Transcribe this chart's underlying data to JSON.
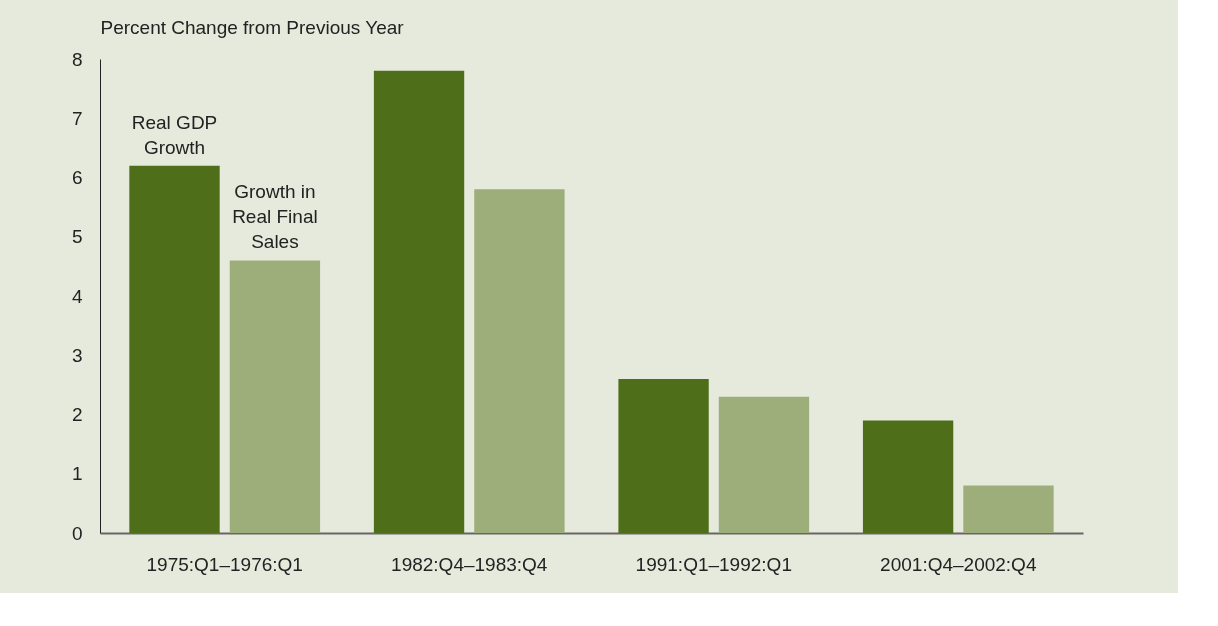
{
  "chart_data": {
    "type": "bar",
    "ylabel": "Percent Change from Previous Year",
    "categories": [
      "1975:Q1–1976:Q1",
      "1982:Q4–1983:Q4",
      "1991:Q1–1992:Q1",
      "2001:Q4–2002:Q4"
    ],
    "series": [
      {
        "name": "Real GDP Growth",
        "color": "#4e6e19",
        "values": [
          6.2,
          7.8,
          2.6,
          1.9
        ]
      },
      {
        "name": "Growth in Real Final Sales",
        "color": "#9dae7a",
        "values": [
          4.6,
          5.8,
          2.3,
          0.8
        ]
      }
    ],
    "ylim": [
      0,
      8
    ],
    "yticks": [
      0,
      1,
      2,
      3,
      4,
      5,
      6,
      7,
      8
    ],
    "grid": false
  }
}
